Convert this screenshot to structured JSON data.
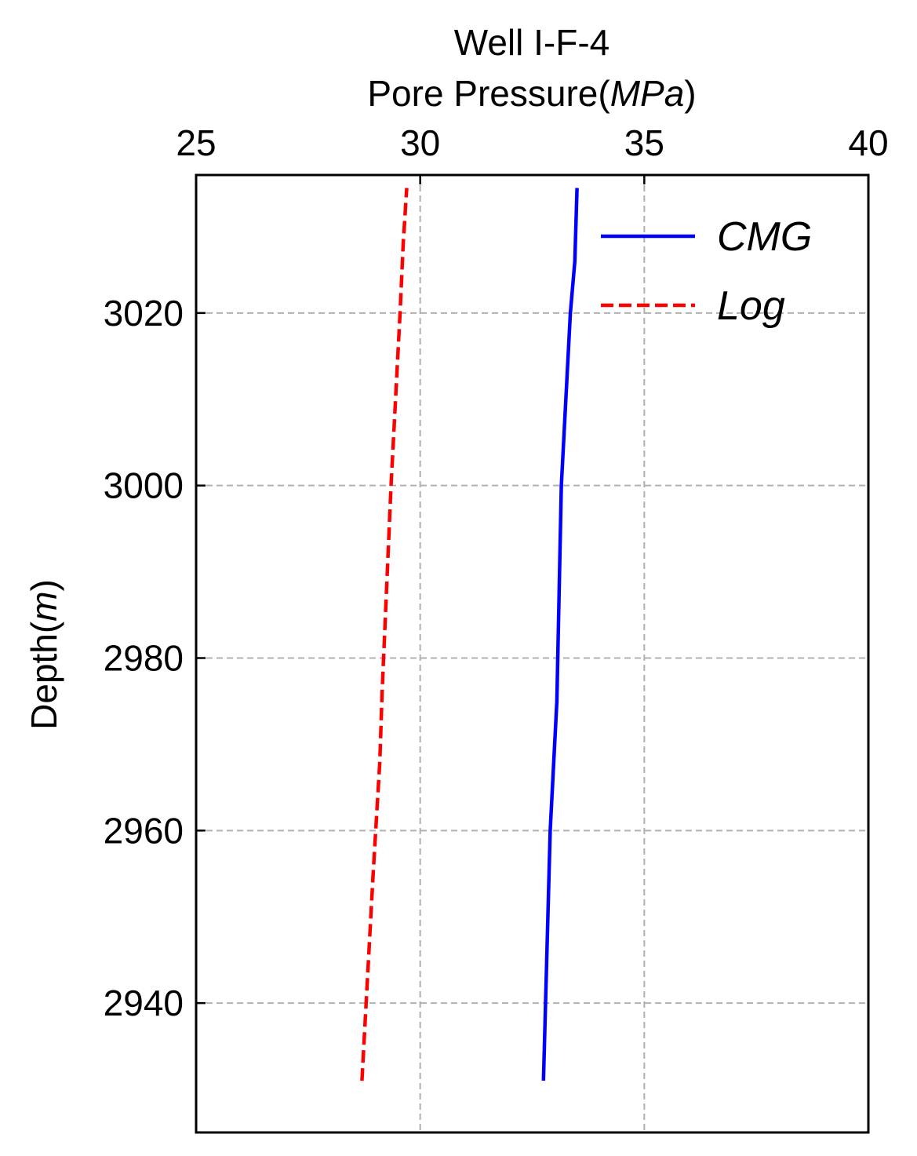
{
  "chart_data": {
    "type": "line",
    "title_line1": "Well I-F-4",
    "xlabel_prefix": "Pore Pressure(",
    "xlabel_unit": "MPa",
    "xlabel_suffix": ")",
    "ylabel_prefix": "Depth(",
    "ylabel_unit": "m",
    "ylabel_suffix": ")",
    "xlim": [
      25,
      40
    ],
    "ylim": [
      2925,
      3036
    ],
    "xticks": [
      25,
      30,
      35,
      40
    ],
    "yticks": [
      2940,
      2960,
      2980,
      3000,
      3020
    ],
    "grid": true,
    "legend_position": "top-right",
    "series": [
      {
        "name": "CMG",
        "color": "#0000ff",
        "style": "solid",
        "points": [
          {
            "x": 32.75,
            "y": 2931
          },
          {
            "x": 32.9,
            "y": 2960
          },
          {
            "x": 33.05,
            "y": 2975
          },
          {
            "x": 33.15,
            "y": 3000
          },
          {
            "x": 33.35,
            "y": 3020
          },
          {
            "x": 33.45,
            "y": 3026
          },
          {
            "x": 33.5,
            "y": 3034.5
          }
        ]
      },
      {
        "name": "Log",
        "color": "#ff0000",
        "style": "dashed",
        "points": [
          {
            "x": 28.7,
            "y": 2931
          },
          {
            "x": 28.95,
            "y": 2955
          },
          {
            "x": 29.1,
            "y": 2968
          },
          {
            "x": 29.15,
            "y": 2976
          },
          {
            "x": 29.35,
            "y": 3000
          },
          {
            "x": 29.55,
            "y": 3020
          },
          {
            "x": 29.62,
            "y": 3028
          },
          {
            "x": 29.7,
            "y": 3034.5
          }
        ]
      }
    ]
  }
}
